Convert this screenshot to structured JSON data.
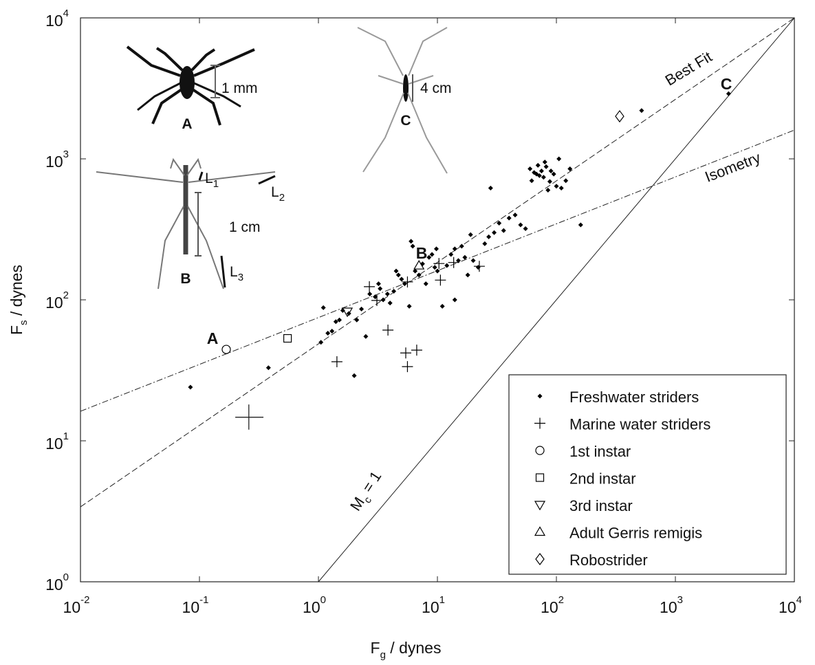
{
  "chart_data": {
    "type": "scatter",
    "x_label": {
      "text": "F",
      "sub": "g",
      "rest": " / dynes"
    },
    "y_label": {
      "text": "F",
      "sub": "s",
      "rest": " / dynes"
    },
    "xlim": [
      0.01,
      10000
    ],
    "ylim": [
      1,
      10000
    ],
    "log_x": true,
    "log_y": true,
    "xticks": [
      {
        "value": 0.01,
        "label": "10",
        "exp": "-2"
      },
      {
        "value": 0.1,
        "label": "10",
        "exp": "-1"
      },
      {
        "value": 1,
        "label": "10",
        "exp": "0"
      },
      {
        "value": 10,
        "label": "10",
        "exp": "1"
      },
      {
        "value": 100,
        "label": "10",
        "exp": "2"
      },
      {
        "value": 1000,
        "label": "10",
        "exp": "3"
      },
      {
        "value": 10000,
        "label": "10",
        "exp": "4"
      }
    ],
    "yticks": [
      {
        "value": 1,
        "label": "10",
        "exp": "0"
      },
      {
        "value": 10,
        "label": "10",
        "exp": "1"
      },
      {
        "value": 100,
        "label": "10",
        "exp": "2"
      },
      {
        "value": 1000,
        "label": "10",
        "exp": "3"
      },
      {
        "value": 10000,
        "label": "10",
        "exp": "4"
      }
    ],
    "legend": "lower right",
    "series": [
      {
        "name": "Freshwater striders",
        "marker": "dot",
        "color": "#000000",
        "x": [
          0.084,
          0.38,
          1.05,
          1.1,
          1.2,
          1.4,
          1.5,
          1.6,
          1.8,
          2.0,
          2.1,
          2.3,
          2.5,
          2.7,
          3.0,
          3.2,
          3.5,
          3.8,
          4.0,
          4.3,
          4.7,
          5.0,
          5.3,
          5.8,
          6.2,
          6.5,
          7.0,
          7.5,
          8.0,
          8.5,
          9.0,
          9.5,
          10,
          11,
          12,
          13,
          14,
          15,
          16,
          17,
          18,
          20,
          22,
          25,
          27,
          30,
          33,
          36,
          40,
          45,
          50,
          55,
          60,
          62,
          65,
          68,
          70,
          72,
          75,
          78,
          80,
          82,
          85,
          88,
          90,
          95,
          100,
          105,
          110,
          120,
          130,
          160,
          520,
          2800,
          1.3,
          4.5,
          6.0,
          3.3,
          9.8,
          28,
          14,
          19
        ],
        "values": [
          24,
          33,
          50,
          88,
          58,
          70,
          72,
          84,
          80,
          29,
          72,
          86,
          55,
          110,
          105,
          130,
          100,
          110,
          95,
          115,
          150,
          140,
          130,
          90,
          240,
          160,
          150,
          180,
          130,
          200,
          210,
          170,
          160,
          90,
          175,
          210,
          230,
          190,
          240,
          200,
          150,
          190,
          170,
          250,
          280,
          300,
          350,
          310,
          380,
          400,
          340,
          320,
          850,
          700,
          800,
          780,
          900,
          760,
          820,
          740,
          950,
          880,
          600,
          690,
          820,
          780,
          640,
          1000,
          620,
          700,
          850,
          340,
          2200,
          2900,
          60,
          160,
          260,
          120,
          230,
          620,
          100,
          290
        ]
      },
      {
        "name": "Marine water striders",
        "marker": "plus",
        "color": "#000000",
        "x": [
          2.68,
          1.43,
          3.84,
          5.42,
          5.6,
          6.7,
          3.1,
          5.6,
          10.3,
          10.6,
          22.5,
          13.7
        ],
        "values": [
          124,
          36.4,
          61,
          42,
          33.6,
          44,
          99,
          134,
          181,
          138,
          173,
          184
        ]
      },
      {
        "name": "1st instar",
        "marker": "circle",
        "color": "#000000",
        "x": [
          0.168
        ],
        "values": [
          44.5
        ]
      },
      {
        "name": "2nd instar",
        "marker": "square",
        "color": "#000000",
        "x": [
          0.55
        ],
        "values": [
          53.3
        ]
      },
      {
        "name": "3rd instar",
        "marker": "triangle-down",
        "color": "#000000",
        "x": [
          1.75
        ],
        "values": [
          82.6
        ]
      },
      {
        "name": "Adult Gerris remigis",
        "marker": "triangle-up",
        "color": "#000000",
        "x": [
          7.0
        ],
        "values": [
          175
        ]
      },
      {
        "name": "Robostrider",
        "marker": "diamond",
        "color": "#000000",
        "x": [
          340
        ],
        "values": [
          2005
        ]
      }
    ],
    "error_bar": {
      "x": 0.26,
      "y": 14.7,
      "x_range": [
        0.2,
        0.345
      ],
      "y_range": [
        12,
        18.1
      ]
    },
    "lines": [
      {
        "label": "Best Fit",
        "style": "dashed",
        "x": [
          0.01,
          10000
        ],
        "values": [
          3.4,
          10000
        ]
      },
      {
        "label": "Isometry",
        "style": "dashdot",
        "x": [
          0.01,
          10000
        ],
        "values": [
          16.2,
          1600
        ]
      },
      {
        "label": {
          "text": "M",
          "sub": "c",
          "rest": " = 1"
        },
        "style": "solid",
        "x": [
          1,
          10000
        ],
        "values": [
          1,
          10000
        ]
      }
    ],
    "annotations": [
      "A",
      "B",
      "C"
    ]
  },
  "insets": {
    "a": {
      "letter": "A",
      "scale": "1 mm"
    },
    "b": {
      "letter": "B",
      "scale": "1 cm",
      "legs": [
        {
          "text": "L",
          "sub": "1"
        },
        {
          "text": "L",
          "sub": "2"
        },
        {
          "text": "L",
          "sub": "3"
        }
      ]
    },
    "c": {
      "letter": "C",
      "scale": "4 cm"
    }
  }
}
